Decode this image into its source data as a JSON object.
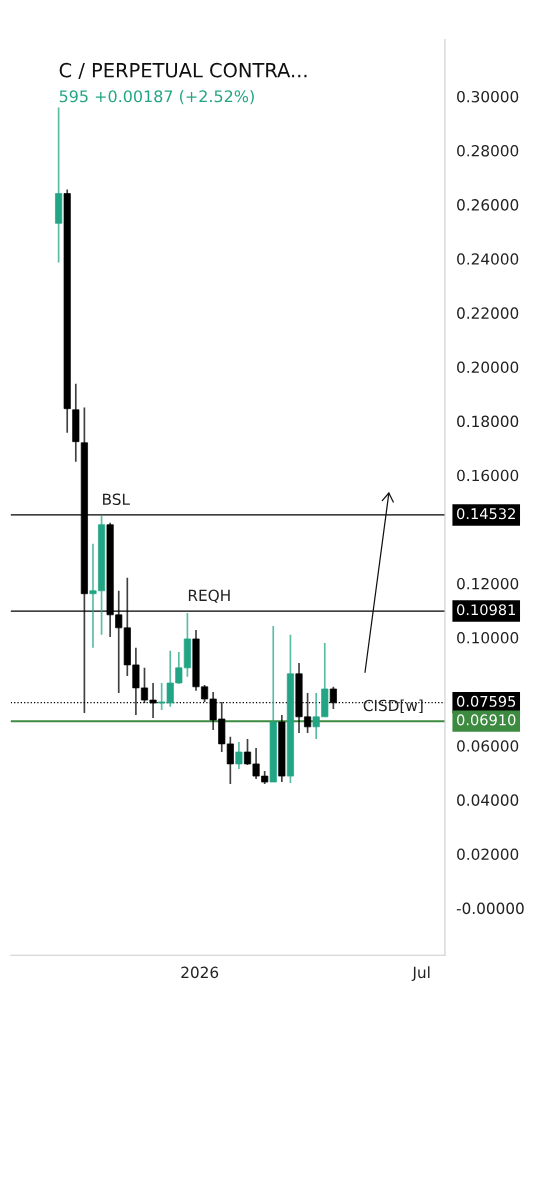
{
  "chart_data": {
    "type": "candlestick",
    "title": "C / PERPETUAL CONTRA...",
    "subtitle": "595 +0.00187 (+2.52%)",
    "x": [
      "2025-09-08",
      "2025-09-15",
      "2025-09-22",
      "2025-09-29",
      "2025-10-06",
      "2025-10-13",
      "2025-10-20",
      "2025-10-27",
      "2025-11-03",
      "2025-11-10",
      "2025-11-17",
      "2025-11-24",
      "2025-12-01",
      "2025-12-08",
      "2025-12-15",
      "2025-12-22",
      "2025-12-29",
      "2026-01-05",
      "2026-01-12",
      "2026-01-19",
      "2026-01-26",
      "2026-02-02",
      "2026-02-09",
      "2026-02-16",
      "2026-02-23",
      "2026-03-02",
      "2026-03-09",
      "2026-03-16",
      "2026-03-23",
      "2026-03-30",
      "2026-04-06",
      "2026-04-13",
      "2026-04-20"
    ],
    "ohlc": [
      [
        0.2531,
        0.2959,
        0.2386,
        0.2641
      ],
      [
        0.2641,
        0.2656,
        0.1757,
        0.1846
      ],
      [
        0.1842,
        0.1938,
        0.165,
        0.1724
      ],
      [
        0.172,
        0.185,
        0.0721,
        0.1162
      ],
      [
        0.1162,
        0.1347,
        0.0962,
        0.1173
      ],
      [
        0.1173,
        0.145,
        0.101,
        0.1417
      ],
      [
        0.1417,
        0.1424,
        0.1002,
        0.1084
      ],
      [
        0.1084,
        0.1173,
        0.0795,
        0.1036
      ],
      [
        0.1036,
        0.1221,
        0.0858,
        0.0899
      ],
      [
        0.0899,
        0.0962,
        0.0714,
        0.0814
      ],
      [
        0.0814,
        0.0888,
        0.0758,
        0.0769
      ],
      [
        0.0769,
        0.0832,
        0.0703,
        0.0758
      ],
      [
        0.0758,
        0.0832,
        0.0732,
        0.0762
      ],
      [
        0.0758,
        0.0951,
        0.0744,
        0.0832
      ],
      [
        0.0832,
        0.0947,
        0.0829,
        0.0888
      ],
      [
        0.0888,
        0.1091,
        0.0855,
        0.0995
      ],
      [
        0.0995,
        0.1028,
        0.0803,
        0.0818
      ],
      [
        0.0818,
        0.0825,
        0.0762,
        0.0773
      ],
      [
        0.0773,
        0.0799,
        0.0658,
        0.0695
      ],
      [
        0.0699,
        0.0762,
        0.0577,
        0.0607
      ],
      [
        0.0607,
        0.0633,
        0.0459,
        0.0533
      ],
      [
        0.0533,
        0.0614,
        0.0514,
        0.0577
      ],
      [
        0.0577,
        0.0625,
        0.0529,
        0.0533
      ],
      [
        0.0533,
        0.0592,
        0.0477,
        0.0488
      ],
      [
        0.0488,
        0.0507,
        0.0459,
        0.0466
      ],
      [
        0.0466,
        0.1043,
        0.0466,
        0.0688
      ],
      [
        0.0688,
        0.0714,
        0.0466,
        0.0488
      ],
      [
        0.0488,
        0.101,
        0.0462,
        0.0866
      ],
      [
        0.0866,
        0.0906,
        0.0647,
        0.0707
      ],
      [
        0.0707,
        0.0795,
        0.0647,
        0.067
      ],
      [
        0.067,
        0.0795,
        0.0625,
        0.0707
      ],
      [
        0.0707,
        0.098,
        0.0707,
        0.081
      ],
      [
        0.081,
        0.0818,
        0.0736,
        0.0759
      ]
    ],
    "colors": [
      "#22a584",
      "#000000",
      "#000000",
      "#000000",
      "#22a584",
      "#22a584",
      "#000000",
      "#000000",
      "#000000",
      "#000000",
      "#000000",
      "#000000",
      "#22a584",
      "#22a584",
      "#22a584",
      "#22a584",
      "#000000",
      "#000000",
      "#000000",
      "#000000",
      "#000000",
      "#22a584",
      "#000000",
      "#000000",
      "#000000",
      "#22a584",
      "#000000",
      "#22a584",
      "#000000",
      "#000000",
      "#22a584",
      "#22a584",
      "#000000"
    ],
    "xlim": [
      "2025-07-31",
      "2026-07-20"
    ],
    "xticks": [
      {
        "value": "2026-01-01",
        "label": "2026"
      },
      {
        "value": "2026-07-01",
        "label": "Jul"
      }
    ],
    "ylim": [
      -0.0174,
      0.321
    ],
    "yticks": [
      {
        "value": 0,
        "label": "-0.00000"
      },
      {
        "value": 0.02,
        "label": "0.02000"
      },
      {
        "value": 0.04,
        "label": "0.04000"
      },
      {
        "value": 0.06,
        "label": "0.06000"
      },
      {
        "value": 0.1,
        "label": "0.10000"
      },
      {
        "value": 0.12,
        "label": "0.12000"
      },
      {
        "value": 0.16,
        "label": "0.16000"
      },
      {
        "value": 0.18,
        "label": "0.18000"
      },
      {
        "value": 0.2,
        "label": "0.20000"
      },
      {
        "value": 0.22,
        "label": "0.22000"
      },
      {
        "value": 0.24,
        "label": "0.24000"
      },
      {
        "value": 0.26,
        "label": "0.26000"
      },
      {
        "value": 0.28,
        "label": "0.28000"
      },
      {
        "value": 0.3,
        "label": "0.30000"
      }
    ],
    "ref_lines": [
      {
        "axis": "y",
        "value": 0.14532,
        "label": "0.14532",
        "color": "#000000",
        "line_style": "solid"
      },
      {
        "axis": "y",
        "value": 0.10981,
        "label": "0.10981",
        "color": "#000000",
        "line_style": "solid"
      },
      {
        "axis": "y",
        "value": 0.07595,
        "label": "0.07595",
        "color": "#000000",
        "line_style": "dotted"
      },
      {
        "axis": "y",
        "value": 0.0691,
        "label": "0.06910",
        "color": "#3d8b40",
        "line_style": "solid"
      }
    ],
    "annotations": [
      {
        "text": "BSL",
        "x": "2025-10-13",
        "y": 0.14532
      },
      {
        "text": "REQH",
        "x": "2025-12-22",
        "y": 0.10981
      },
      {
        "text": "CISD[w]",
        "x": "2026-05-14",
        "y": 0.0691
      }
    ],
    "grid": false
  }
}
